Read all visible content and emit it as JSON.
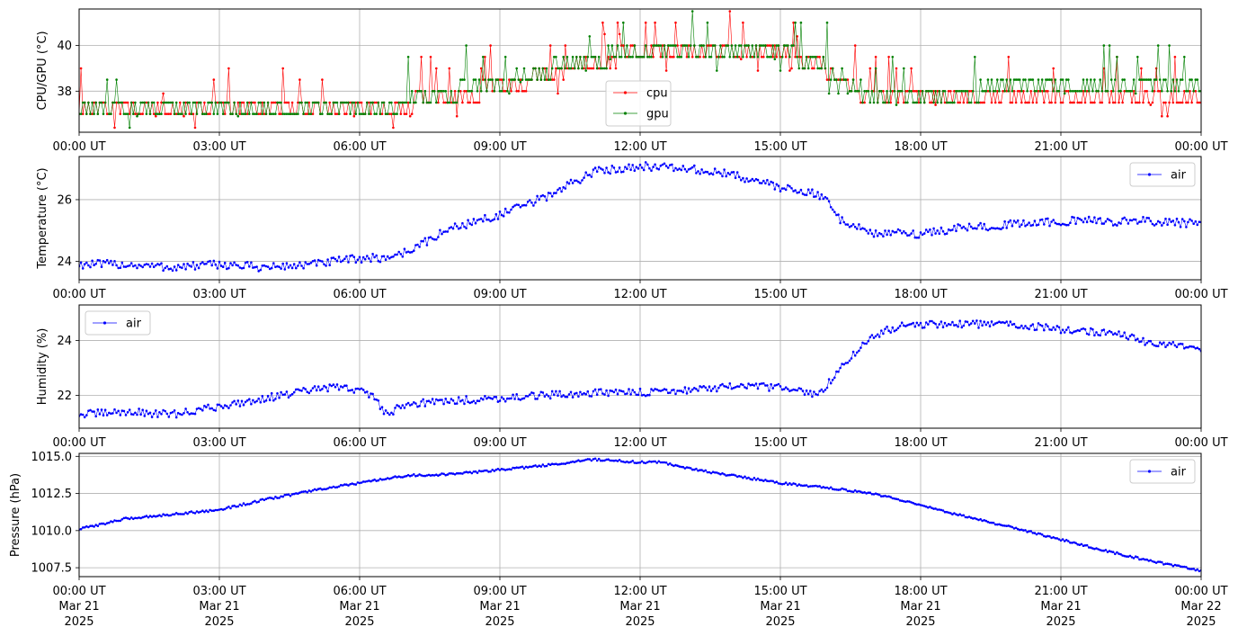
{
  "x_ticks": {
    "times": [
      "00:00 UT",
      "03:00 UT",
      "06:00 UT",
      "09:00 UT",
      "12:00 UT",
      "15:00 UT",
      "18:00 UT",
      "21:00 UT",
      "00:00 UT"
    ],
    "dates": [
      "Mar 21",
      "Mar 21",
      "Mar 21",
      "Mar 21",
      "Mar 21",
      "Mar 21",
      "Mar 21",
      "Mar 21",
      "Mar 22"
    ],
    "years": [
      "2025",
      "2025",
      "2025",
      "2025",
      "2025",
      "2025",
      "2025",
      "2025",
      "2025"
    ]
  },
  "chart_data": [
    {
      "type": "line",
      "ylabel": "CPU/GPU (°C)",
      "xlim": [
        "2025-03-21 00:00",
        "2025-03-22 00:00"
      ],
      "ylim": [
        36.2,
        41.6
      ],
      "yticks": [
        38,
        40
      ],
      "ytick_labels": [
        "38",
        "40"
      ],
      "grid": true,
      "legend": "bottom-center",
      "colors": {
        "cpu": "#ff0000",
        "gpu": "#008000"
      },
      "series": [
        {
          "name": "cpu",
          "color": "#ff0000",
          "x": [
            "00:00",
            "01:00",
            "02:00",
            "03:00",
            "04:00",
            "05:00",
            "06:00",
            "07:00",
            "08:00",
            "09:00",
            "10:00",
            "11:00",
            "12:00",
            "13:00",
            "14:00",
            "15:00",
            "16:00",
            "17:00",
            "18:00",
            "19:00",
            "20:00",
            "21:00",
            "22:00",
            "23:00",
            "24:00"
          ],
          "values": [
            37.6,
            37.4,
            37.3,
            37.4,
            37.5,
            37.4,
            37.3,
            37.7,
            38.0,
            38.4,
            39.0,
            39.4,
            40.0,
            40.1,
            40.0,
            39.9,
            39.2,
            37.8,
            37.9,
            38.0,
            38.2,
            38.1,
            38.0,
            38.1,
            38.2
          ]
        },
        {
          "name": "gpu",
          "color": "#008000",
          "x": [
            "00:00",
            "01:00",
            "02:00",
            "03:00",
            "04:00",
            "05:00",
            "06:00",
            "07:00",
            "08:00",
            "09:00",
            "10:00",
            "11:00",
            "12:00",
            "13:00",
            "14:00",
            "15:00",
            "16:00",
            "17:00",
            "18:00",
            "19:00",
            "20:00",
            "21:00",
            "22:00",
            "23:00",
            "24:00"
          ],
          "values": [
            37.6,
            37.5,
            37.4,
            37.4,
            37.5,
            37.4,
            37.4,
            37.8,
            38.2,
            38.6,
            39.2,
            39.6,
            40.1,
            40.2,
            40.1,
            40.0,
            39.3,
            37.9,
            38.0,
            38.2,
            38.4,
            38.3,
            38.3,
            38.4,
            38.4
          ]
        }
      ]
    },
    {
      "type": "line",
      "ylabel": "Temperature (°C)",
      "xlim": [
        "2025-03-21 00:00",
        "2025-03-22 00:00"
      ],
      "ylim": [
        23.4,
        27.4
      ],
      "yticks": [
        24,
        26
      ],
      "ytick_labels": [
        "24",
        "26"
      ],
      "grid": true,
      "legend": "top-right",
      "colors": {
        "air": "#0000ff"
      },
      "series": [
        {
          "name": "air",
          "color": "#0000ff",
          "x": [
            "00:00",
            "01:00",
            "02:00",
            "03:00",
            "04:00",
            "05:00",
            "06:00",
            "06:30",
            "07:00",
            "07:30",
            "08:00",
            "09:00",
            "10:00",
            "10:30",
            "11:00",
            "12:00",
            "13:00",
            "14:00",
            "15:00",
            "15:30",
            "16:00",
            "16:15",
            "16:30",
            "17:00",
            "18:00",
            "19:00",
            "20:00",
            "21:00",
            "22:00",
            "23:00",
            "24:00"
          ],
          "values": [
            23.9,
            23.9,
            23.8,
            23.9,
            23.8,
            23.9,
            24.1,
            24.1,
            24.3,
            24.7,
            25.1,
            25.5,
            26.1,
            26.5,
            26.9,
            27.1,
            27.0,
            26.8,
            26.4,
            26.3,
            26.0,
            25.4,
            25.2,
            24.9,
            24.9,
            25.1,
            25.2,
            25.3,
            25.3,
            25.3,
            25.2
          ]
        }
      ]
    },
    {
      "type": "line",
      "ylabel": "Humidity (%)",
      "xlim": [
        "2025-03-21 00:00",
        "2025-03-22 00:00"
      ],
      "ylim": [
        20.8,
        25.3
      ],
      "yticks": [
        22,
        24
      ],
      "ytick_labels": [
        "22",
        "24"
      ],
      "grid": true,
      "legend": "top-left",
      "colors": {
        "air": "#0000ff"
      },
      "series": [
        {
          "name": "air",
          "color": "#0000ff",
          "x": [
            "00:00",
            "01:00",
            "02:00",
            "03:00",
            "04:00",
            "05:00",
            "05:30",
            "06:00",
            "06:20",
            "06:35",
            "07:00",
            "08:00",
            "09:00",
            "10:00",
            "11:00",
            "12:00",
            "13:00",
            "14:00",
            "15:00",
            "15:45",
            "16:00",
            "16:30",
            "17:00",
            "17:30",
            "18:00",
            "19:00",
            "20:00",
            "21:00",
            "22:00",
            "23:00",
            "24:00"
          ],
          "values": [
            21.3,
            21.4,
            21.3,
            21.6,
            21.9,
            22.2,
            22.3,
            22.2,
            21.9,
            21.3,
            21.7,
            21.8,
            21.9,
            22.0,
            22.1,
            22.1,
            22.2,
            22.3,
            22.3,
            22.0,
            22.4,
            23.4,
            24.2,
            24.5,
            24.6,
            24.6,
            24.6,
            24.4,
            24.3,
            23.9,
            23.7
          ]
        }
      ]
    },
    {
      "type": "line",
      "ylabel": "Pressure (hPa)",
      "xlim": [
        "2025-03-21 00:00",
        "2025-03-22 00:00"
      ],
      "ylim": [
        1006.9,
        1015.2
      ],
      "yticks": [
        1007.5,
        1010.0,
        1012.5,
        1015.0
      ],
      "ytick_labels": [
        "1007.5",
        "1010.0",
        "1012.5",
        "1015.0"
      ],
      "grid": true,
      "legend": "top-right",
      "colors": {
        "air": "#0000ff"
      },
      "series": [
        {
          "name": "air",
          "color": "#0000ff",
          "x": [
            "00:00",
            "01:00",
            "02:00",
            "03:00",
            "04:00",
            "05:00",
            "06:00",
            "07:00",
            "08:00",
            "09:00",
            "10:00",
            "11:00",
            "12:00",
            "12:30",
            "13:00",
            "14:00",
            "15:00",
            "16:00",
            "17:00",
            "18:00",
            "19:00",
            "20:00",
            "21:00",
            "22:00",
            "23:00",
            "24:00"
          ],
          "values": [
            1010.1,
            1010.8,
            1011.1,
            1011.4,
            1012.1,
            1012.7,
            1013.2,
            1013.7,
            1013.8,
            1014.1,
            1014.4,
            1014.8,
            1014.6,
            1014.6,
            1014.2,
            1013.7,
            1013.2,
            1012.9,
            1012.5,
            1011.7,
            1010.9,
            1010.2,
            1009.4,
            1008.6,
            1007.9,
            1007.3
          ]
        }
      ]
    }
  ]
}
